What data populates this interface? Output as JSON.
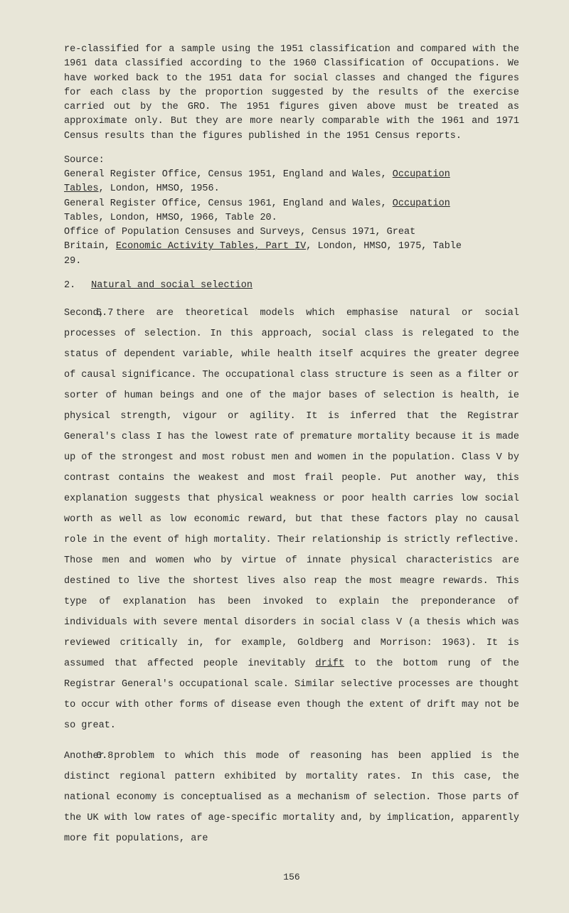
{
  "colors": {
    "background": "#e8e6d8",
    "text": "#2a2a2a"
  },
  "typography": {
    "font_family": "Courier New",
    "body_fontsize": 13.5,
    "line_height_normal": 1.5,
    "line_height_double": 2.15
  },
  "intro_paragraph": "re-classified for a sample using the 1951 classification and compared with the 1961 data classified according to the 1960 Classification of Occupations. We have worked back to the 1951 data for social classes and changed the figures for each class by the proportion suggested by the results of the exercise carried out by the GRO. The 1951 figures given above must be treated as approximate only. But they are more nearly comparable with the 1961 and 1971 Census results than the figures published in the 1951 Census reports.",
  "source": {
    "label": "Source:",
    "line1_pre": "General Register Office, Census 1951, England and Wales, ",
    "line1_u": "Occupation Tables",
    "line1_post": ", London, HMSO, 1956.",
    "line2_pre": "General Register Office, Census 1961, England and Wales, ",
    "line2_u": "Occupation",
    "line2_post": " Tables, London, HMSO, 1966, Table 20.",
    "line3": "Office of Population Censuses and Surveys, Census 1971, Great Britain, ",
    "line3_u": "Economic Activity Tables, Part IV",
    "line3_post": ", London, HMSO, 1975, Table 29."
  },
  "section2": {
    "num": "2.",
    "title": "Natural and social selection"
  },
  "para67": {
    "num": "6.7",
    "text_pre": "Second, there are theoretical models which emphasise natural or social processes of selection. In this approach, social class is relegated to the status of dependent variable, while health itself acquires the greater degree of causal significance. The occupational class structure is seen as a filter or sorter of human beings and one of the major bases of selection is health, ie physical strength, vigour or agility. It is inferred that the Registrar General's class I has the lowest rate of premature mortality because it is made up of the strongest and most robust men and women in the population. Class V by contrast contains the weakest and most frail people. Put another way, this explanation suggests that physical weakness or poor health carries low social worth as well as low economic reward, but that these factors play no causal role in the event of high mortality. Their relationship is strictly reflective. Those men and women who by virtue of innate physical characteristics are destined to live the shortest lives also reap the most meagre rewards. This type of explanation has been invoked to explain the preponderance of individuals with severe mental disorders in social class V (a thesis which was reviewed critically in, for example, Goldberg and Morrison: 1963). It is assumed that affected people inevitably ",
    "text_u": "drift",
    "text_post": " to the bottom rung of the Registrar General's occupational scale. Similar selective processes are thought to occur with other forms of disease even though the extent of drift may not be so great."
  },
  "para68": {
    "num": "6.8",
    "text": "Another problem to which this mode of reasoning has been applied is the distinct regional pattern exhibited by mortality rates. In this case, the national economy is conceptualised as a mechanism of selection. Those parts of the UK with low rates of age-specific mortality and, by implication, apparently more fit populations, are"
  },
  "page_number": "156"
}
